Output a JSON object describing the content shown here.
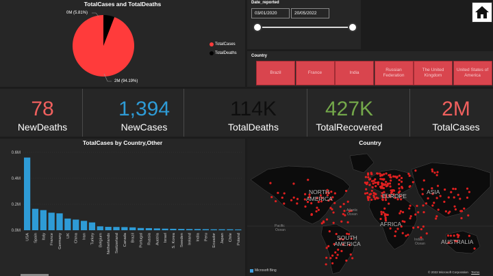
{
  "pie_panel": {
    "title": "TotalCases and TotalDeaths",
    "label_small": "0M (5.81%)",
    "label_large": "2M (94.19%)",
    "legend": [
      "TotalCases",
      "TotalDeaths"
    ],
    "colors": [
      "#ff3b3b",
      "#000000"
    ],
    "chart_data": {
      "type": "pie",
      "slices": [
        {
          "name": "TotalCases",
          "value": 94.19
        },
        {
          "name": "TotalDeaths",
          "value": 5.81
        }
      ]
    }
  },
  "date_filter": {
    "label": "Date_reported",
    "start": "03/01/2020",
    "end": "20/05/2022"
  },
  "country_filter": {
    "label": "Country",
    "items": [
      "Brazil",
      "France",
      "India",
      "Russian Federation",
      "The United Kingdom",
      "United States of America"
    ]
  },
  "kpis": [
    {
      "value": "78",
      "label": "NewDeaths",
      "color": "#f0605e"
    },
    {
      "value": "1,394",
      "label": "NewCases",
      "color": "#2e9bd6"
    },
    {
      "value": "114K",
      "label": "TotalDeaths",
      "color": "#0e0e0e"
    },
    {
      "value": "427K",
      "label": "TotalRecovered",
      "color": "#74a84a"
    },
    {
      "value": "2M",
      "label": "TotalCases",
      "color": "#f0605e"
    }
  ],
  "bar_panel": {
    "title": "TotalCases by Country,Other",
    "bar_color": "#2e9bd6",
    "chart_data": {
      "type": "bar",
      "categories": [
        "USA",
        "Spain",
        "Italy",
        "France",
        "Germany",
        "UK",
        "China",
        "Iran",
        "Turkey",
        "Belgium",
        "Netherlands",
        "Switzerland",
        "Canada",
        "Brazil",
        "Portugal",
        "Russia",
        "Austria",
        "Israel",
        "S. Korea",
        "Sweden",
        "Ireland",
        "India",
        "Peru",
        "Ecuador",
        "Japan",
        "Chile",
        "Poland"
      ],
      "values": [
        0.56,
        0.165,
        0.155,
        0.135,
        0.13,
        0.09,
        0.082,
        0.072,
        0.06,
        0.03,
        0.026,
        0.025,
        0.024,
        0.022,
        0.017,
        0.016,
        0.014,
        0.012,
        0.011,
        0.01,
        0.009,
        0.009,
        0.008,
        0.007,
        0.007,
        0.007,
        0.006
      ],
      "ylim": [
        0,
        0.6
      ],
      "yticks": [
        "0.0M",
        "0.2M",
        "0.4M",
        "0.6M"
      ],
      "ytick_values": [
        0,
        0.2,
        0.4,
        0.6
      ]
    }
  },
  "map_panel": {
    "title": "Country",
    "continents": [
      "NORTH",
      "AMERICA",
      "EUROPE",
      "ASIA",
      "AFRICA",
      "SOUTH",
      "AMERICA",
      "AUSTRALIA"
    ],
    "oceans": [
      "Atlantic",
      "Ocean",
      "Pacific",
      "Ocean",
      "Indian",
      "Ocean"
    ],
    "attribution": "Microsoft Bing",
    "copyright": "© 2022 Microsoft Corporation",
    "terms": "Terms",
    "dot_color": "#e02020"
  }
}
